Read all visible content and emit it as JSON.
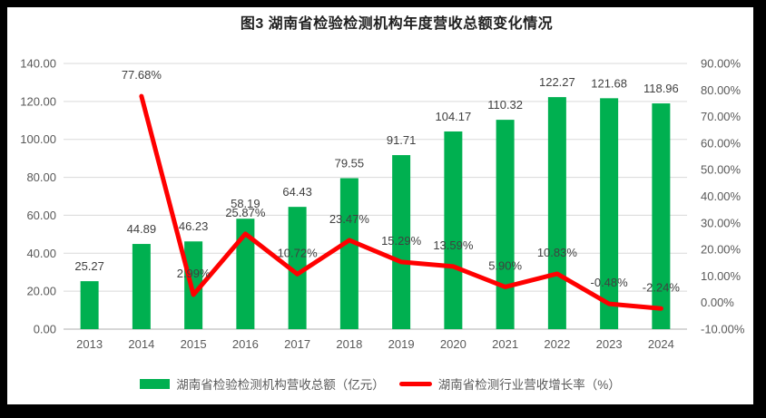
{
  "title": "图3 湖南省检验检测机构年度营收总额变化情况",
  "colors": {
    "frame": "#000000",
    "canvas": "#FFFFFF",
    "bar": "#00B050",
    "line": "#FF0000",
    "gridline": "#D9D9D9",
    "axis_line": "#BFBFBF",
    "axis_text": "#595959",
    "data_label_text": "#404040",
    "title_text": "#1F1F1F"
  },
  "chart_data": {
    "type": "bar",
    "subtype": "combo-bar-line",
    "title": "图3 湖南省检验检测机构年度营收总额变化情况",
    "categories": [
      "2013",
      "2014",
      "2015",
      "2016",
      "2017",
      "2018",
      "2019",
      "2020",
      "2021",
      "2022",
      "2023",
      "2024"
    ],
    "series": [
      {
        "name": "湖南省检验检测机构营收总额（亿元）",
        "type": "bar",
        "axis": "left",
        "color": "#00B050",
        "values": [
          25.27,
          44.89,
          46.23,
          58.19,
          64.43,
          79.55,
          91.71,
          104.17,
          110.32,
          122.27,
          121.68,
          118.96
        ],
        "data_labels": [
          "25.27",
          "44.89",
          "46.23",
          "58.19",
          "64.43",
          "79.55",
          "91.71",
          "104.17",
          "110.32",
          "122.27",
          "121.68",
          "118.96"
        ]
      },
      {
        "name": "湖南省检测行业营收增长率（%）",
        "type": "line",
        "axis": "right",
        "color": "#FF0000",
        "values": [
          null,
          77.68,
          2.99,
          25.87,
          10.72,
          23.47,
          15.29,
          13.59,
          5.9,
          10.83,
          -0.48,
          -2.24
        ],
        "data_labels": [
          "",
          "77.68%",
          "2.99%",
          "25.87%",
          "10.72%",
          "23.47%",
          "15.29%",
          "13.59%",
          "5.90%",
          "10.83%",
          "-0.48%",
          "-2.24%"
        ]
      }
    ],
    "left_axis": {
      "min": 0,
      "max": 140,
      "step": 20,
      "tick_labels": [
        "0.00",
        "20.00",
        "40.00",
        "60.00",
        "80.00",
        "100.00",
        "120.00",
        "140.00"
      ]
    },
    "right_axis": {
      "min": -10,
      "max": 90,
      "step": 10,
      "tick_labels": [
        "-10.00%",
        "0.00%",
        "10.00%",
        "20.00%",
        "30.00%",
        "40.00%",
        "50.00%",
        "60.00%",
        "70.00%",
        "80.00%",
        "90.00%"
      ]
    },
    "grid": true,
    "legend_position": "bottom"
  }
}
